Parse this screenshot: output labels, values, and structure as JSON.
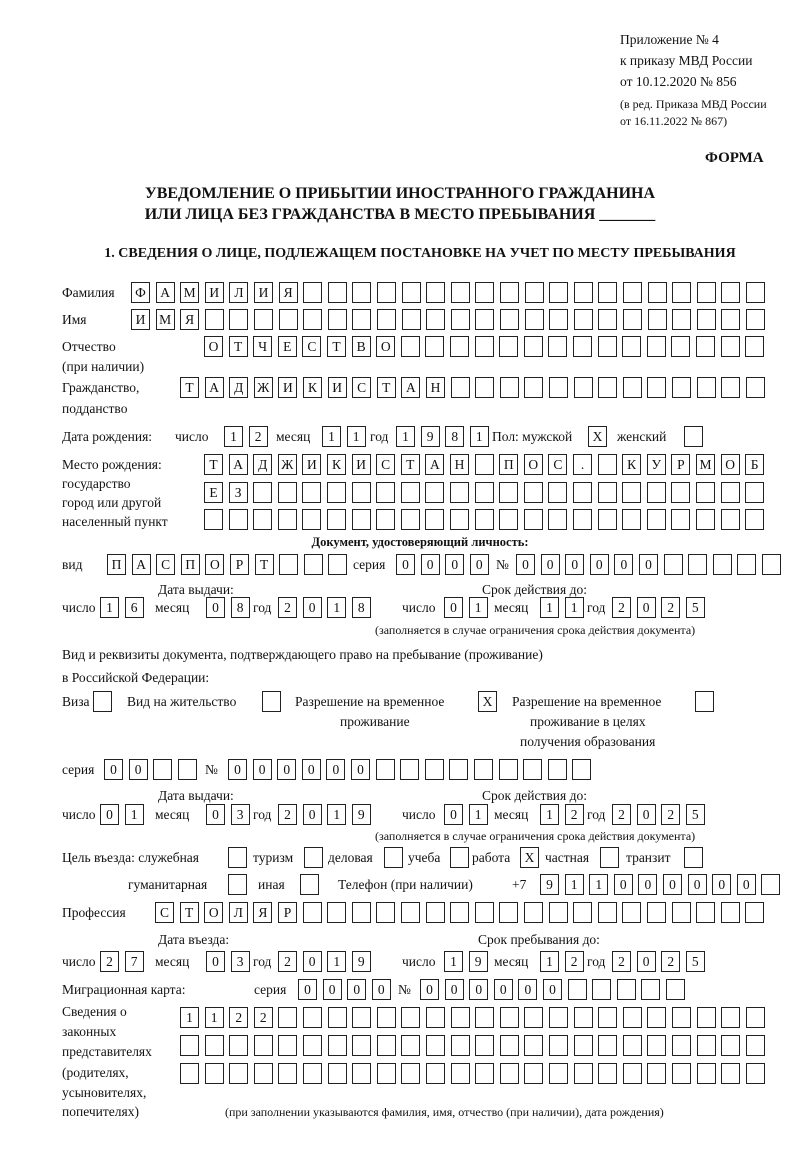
{
  "header": {
    "line1": "Приложение № 4",
    "line2": "к приказу МВД России",
    "line3": "от 10.12.2020 № 856",
    "line4": "(в ред. Приказа МВД России",
    "line5": "от 16.11.2022 № 867)",
    "form": "ФОРМА"
  },
  "title": {
    "line1": "УВЕДОМЛЕНИЕ О ПРИБЫТИИ ИНОСТРАННОГО ГРАЖДАНИНА",
    "line2": "ИЛИ ЛИЦА БЕЗ ГРАЖДАНСТВА В МЕСТО ПРЕБЫВАНИЯ _______"
  },
  "section1": "1. СВЕДЕНИЯ О ЛИЦЕ, ПОДЛЕЖАЩЕМ ПОСТАНОВКЕ НА УЧЕТ ПО МЕСТУ ПРЕБЫВАНИЯ",
  "labels": {
    "surname": "Фамилия",
    "name": "Имя",
    "patronymic": "Отчество",
    "patronymic_note": "(при наличии)",
    "citizenship": "Гражданство,",
    "citizenship2": "подданство",
    "dob": "Дата рождения:",
    "day": "число",
    "month": "месяц",
    "year": "год",
    "sex": "Пол: мужской",
    "female": "женский",
    "birthplace1": "Место рождения:",
    "birthplace2": "государство",
    "birthplace3": "город или другой",
    "birthplace4": "населенный пункт",
    "id_doc": "Документ, удостоверяющий личность:",
    "kind": "вид",
    "series": "серия",
    "number": "№",
    "issue_date": "Дата выдачи:",
    "valid_until": "Срок действия до:",
    "validity_note": "(заполняется в случае ограничения срока действия документа)",
    "right_doc1": "Вид и реквизиты документа, подтверждающего право на пребывание (проживание)",
    "right_doc2": "в Российской Федерации:",
    "visa": "Виза",
    "residence": "Вид на жительство",
    "temp1": "Разрешение на временное",
    "temp2": "проживание",
    "edu1": "Разрешение на временное",
    "edu2": "проживание в целях",
    "edu3": "получения образования",
    "purpose": "Цель въезда: служебная",
    "tourism": "туризм",
    "business": "деловая",
    "study": "учеба",
    "work": "работа",
    "private": "частная",
    "transit": "транзит",
    "humanitarian": "гуманитарная",
    "other": "иная",
    "phone": "Телефон (при наличии)",
    "phone_prefix": "+7",
    "profession": "Профессия",
    "entry_date": "Дата въезда:",
    "stay_until": "Срок пребывания до:",
    "migration_card": "Миграционная карта:",
    "rep1": "Сведения о",
    "rep2": "законных",
    "rep3": "представителях",
    "rep4": "(родителях,",
    "rep5": "усыновителях,",
    "rep6": "попечителях)",
    "rep_note": "(при заполнении указываются фамилия, имя, отчество (при наличии), дата рождения)"
  },
  "fields": {
    "surname": [
      "Ф",
      "А",
      "М",
      "И",
      "Л",
      "И",
      "Я"
    ],
    "name": [
      "И",
      "М",
      "Я"
    ],
    "patronymic": [
      "О",
      "Т",
      "Ч",
      "Е",
      "С",
      "Т",
      "В",
      "О"
    ],
    "citizenship": [
      "Т",
      "А",
      "Д",
      "Ж",
      "И",
      "К",
      "И",
      "С",
      "Т",
      "А",
      "Н"
    ],
    "dob_day": [
      "1",
      "2"
    ],
    "dob_month": [
      "1",
      "1"
    ],
    "dob_year": [
      "1",
      "9",
      "8",
      "1"
    ],
    "sex_male": [
      "X"
    ],
    "sex_female": [
      ""
    ],
    "birthplace_row1": [
      "Т",
      "А",
      "Д",
      "Ж",
      "И",
      "К",
      "И",
      "С",
      "Т",
      "А",
      "Н",
      "",
      "П",
      "О",
      "С",
      ".",
      "",
      "К",
      "У",
      "Р",
      "М",
      "О",
      "Б"
    ],
    "birthplace_row2": [
      "Е",
      "З"
    ],
    "birthplace_row3": [],
    "doc_kind": [
      "П",
      "А",
      "С",
      "П",
      "О",
      "Р",
      "Т"
    ],
    "doc_series": [
      "0",
      "0",
      "0",
      "0"
    ],
    "doc_number": [
      "0",
      "0",
      "0",
      "0",
      "0",
      "0"
    ],
    "doc_issue_day": [
      "1",
      "6"
    ],
    "doc_issue_month": [
      "0",
      "8"
    ],
    "doc_issue_year": [
      "2",
      "0",
      "1",
      "8"
    ],
    "doc_valid_day": [
      "0",
      "1"
    ],
    "doc_valid_month": [
      "1",
      "1"
    ],
    "doc_valid_year": [
      "2",
      "0",
      "2",
      "5"
    ],
    "visa": [
      ""
    ],
    "residence": [
      ""
    ],
    "temp_residence": [
      "X"
    ],
    "edu_residence": [
      ""
    ],
    "permit_series": [
      "0",
      "0"
    ],
    "permit_number": [
      "0",
      "0",
      "0",
      "0",
      "0",
      "0"
    ],
    "permit_issue_day": [
      "0",
      "1"
    ],
    "permit_issue_month": [
      "0",
      "3"
    ],
    "permit_issue_year": [
      "2",
      "0",
      "1",
      "9"
    ],
    "permit_valid_day": [
      "0",
      "1"
    ],
    "permit_valid_month": [
      "1",
      "2"
    ],
    "permit_valid_year": [
      "2",
      "0",
      "2",
      "5"
    ],
    "p_official": [
      ""
    ],
    "p_tourism": [
      ""
    ],
    "p_business": [
      ""
    ],
    "p_study": [
      ""
    ],
    "p_work": [
      "X"
    ],
    "p_private": [
      ""
    ],
    "p_transit": [
      ""
    ],
    "p_humanitarian": [
      ""
    ],
    "p_other": [
      ""
    ],
    "phone": [
      "9",
      "1",
      "1",
      "0",
      "0",
      "0",
      "0",
      "0",
      "0"
    ],
    "profession": [
      "С",
      "Т",
      "О",
      "Л",
      "Я",
      "Р"
    ],
    "entry_day": [
      "2",
      "7"
    ],
    "entry_month": [
      "0",
      "3"
    ],
    "entry_year": [
      "2",
      "0",
      "1",
      "9"
    ],
    "stay_day": [
      "1",
      "9"
    ],
    "stay_month": [
      "1",
      "2"
    ],
    "stay_year": [
      "2",
      "0",
      "2",
      "5"
    ],
    "mc_series": [
      "0",
      "0",
      "0",
      "0"
    ],
    "mc_number": [
      "0",
      "0",
      "0",
      "0",
      "0",
      "0"
    ],
    "rep_row1": [
      "1",
      "1",
      "2",
      "2"
    ],
    "rep_row2": [],
    "rep_row3": []
  }
}
